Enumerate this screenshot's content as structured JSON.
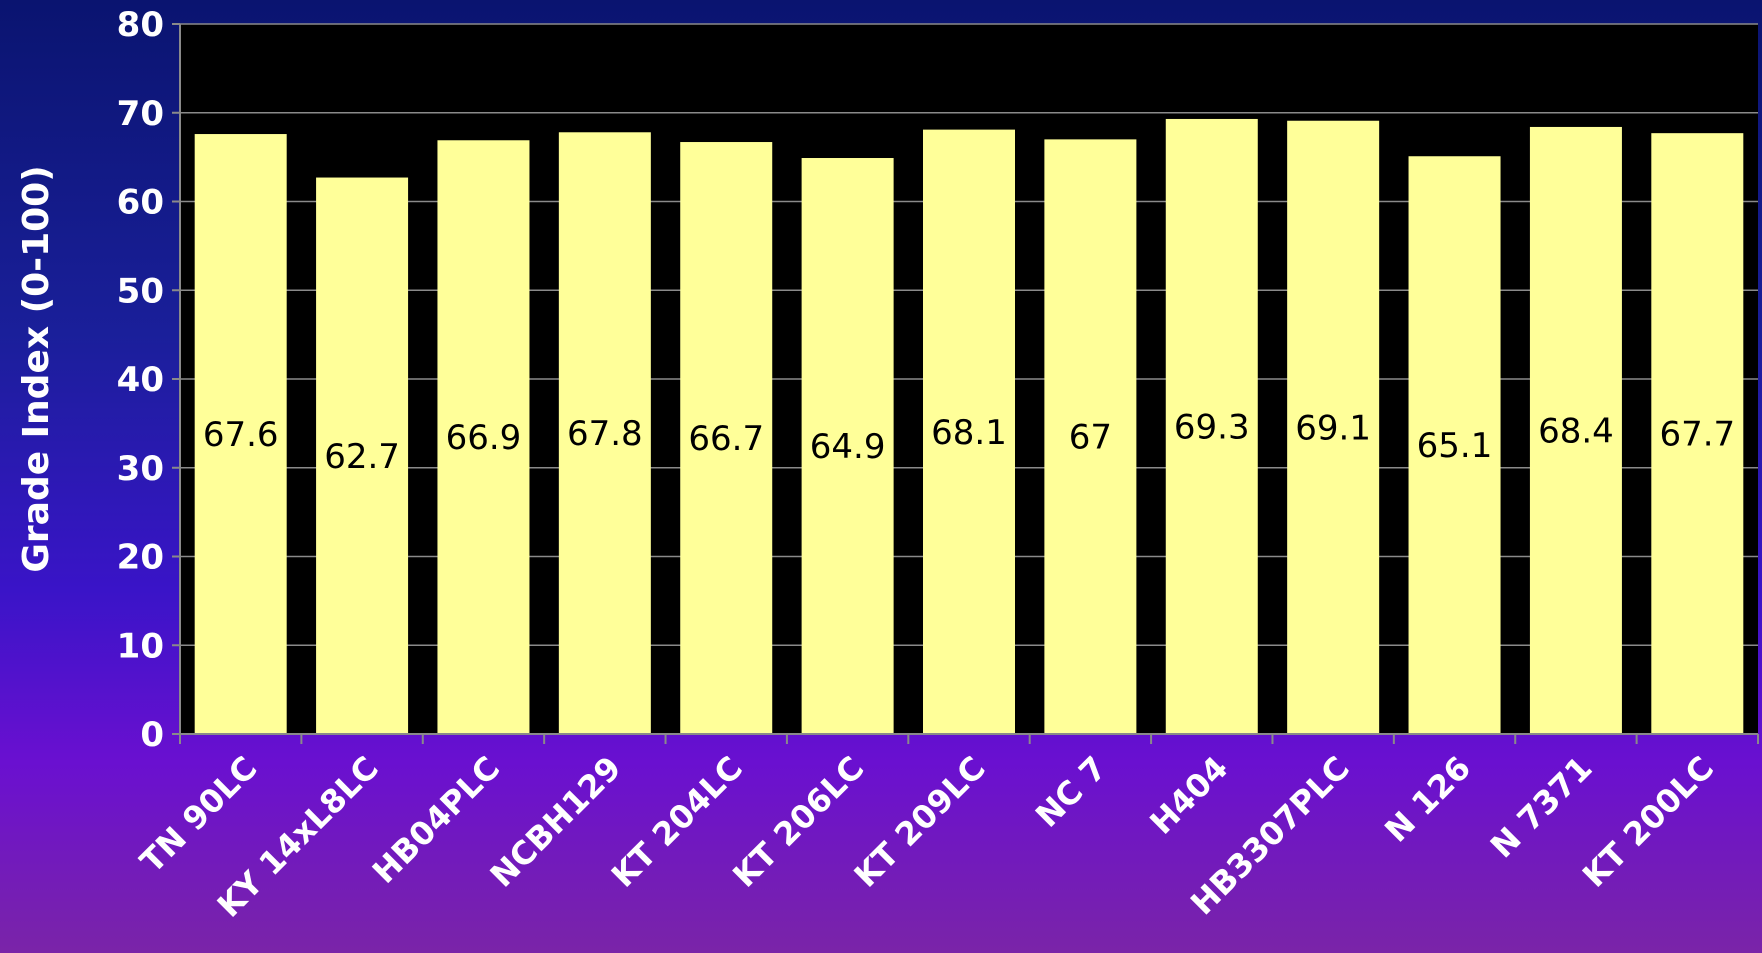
{
  "chart_data": {
    "type": "bar",
    "title": "",
    "xlabel": "",
    "ylabel": "Grade Index (0-100)",
    "ylim": [
      0,
      80
    ],
    "yticks": [
      0,
      10,
      20,
      30,
      40,
      50,
      60,
      70,
      80
    ],
    "grid": true,
    "categories": [
      "TN 90LC",
      "KY 14xL8LC",
      "HB04PLC",
      "NCBH129",
      "KT 204LC",
      "KT 206LC",
      "KT 209LC",
      "NC 7",
      "H404",
      "HB3307PLC",
      "N 126",
      "N 7371",
      "KT 200LC"
    ],
    "values": [
      67.6,
      62.7,
      66.9,
      67.8,
      66.7,
      64.9,
      68.1,
      67,
      69.3,
      69.1,
      65.1,
      68.4,
      67.7
    ],
    "data_labels": [
      "67.6",
      "62.7",
      "66.9",
      "67.8",
      "66.7",
      "64.9",
      "68.1",
      "67",
      "69.3",
      "69.1",
      "65.1",
      "68.4",
      "67.7"
    ],
    "colors": {
      "plot_background": "#000000",
      "bar_fill": "#ffff99",
      "gridline": "#8a8a8a",
      "text": "#ffffff",
      "data_label": "#000000"
    }
  }
}
